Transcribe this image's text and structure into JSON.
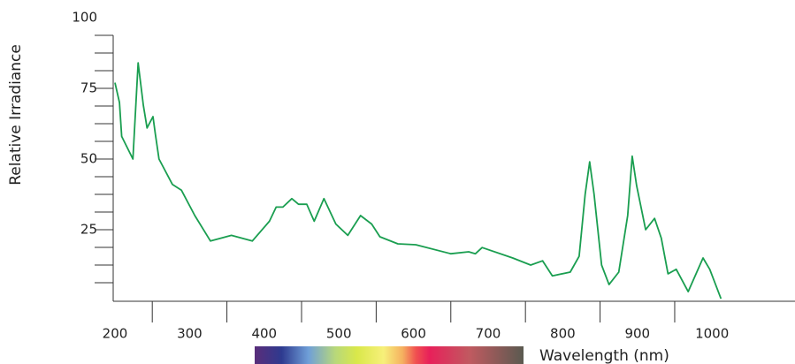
{
  "chart_data": {
    "type": "line",
    "ylabel": "Relative Irradiance",
    "xlabel": "Wavelength (nm)",
    "color": "#1a9e50",
    "xlim": [
      200,
      1110
    ],
    "ylim": [
      0,
      100
    ],
    "xticks": [
      200,
      300,
      400,
      500,
      600,
      700,
      800,
      900,
      1000
    ],
    "xminorticks": [
      250,
      350,
      450,
      550,
      650,
      750,
      850,
      950
    ],
    "yticks": [
      25,
      50,
      75,
      100
    ],
    "yminorticks": [
      6.25,
      12.5,
      18.75,
      25,
      31.25,
      37.5,
      43.75,
      50,
      56.25,
      62.5,
      68.75,
      75,
      81.25,
      87.5,
      93.75
    ],
    "x": [
      200,
      206,
      209,
      224,
      231,
      238,
      243,
      251,
      254,
      259,
      277,
      289,
      307,
      328,
      356,
      384,
      407,
      416,
      425,
      437,
      446,
      457,
      467,
      480,
      496,
      512,
      529,
      544,
      555,
      579,
      603,
      650,
      674,
      683,
      692,
      733,
      757,
      773,
      786,
      810,
      822,
      830,
      836,
      842,
      852,
      862,
      875,
      887,
      893,
      899,
      911,
      923,
      932,
      941,
      952,
      968,
      988,
      997,
      1012
    ],
    "values": [
      77,
      70,
      58,
      50,
      84,
      69,
      61,
      65,
      59,
      50,
      41,
      39,
      30,
      21,
      23,
      21,
      28,
      33,
      33,
      36,
      34,
      34,
      28,
      36,
      27,
      23,
      30,
      27,
      22.5,
      20,
      19.7,
      16.5,
      17.2,
      16.5,
      18.7,
      15,
      12.5,
      14,
      8.7,
      10,
      15.6,
      37.5,
      49,
      37.5,
      12.5,
      5.6,
      10,
      30,
      51,
      40.6,
      25,
      29,
      22,
      9.4,
      11,
      3.1,
      15,
      11,
      0.6
    ]
  }
}
